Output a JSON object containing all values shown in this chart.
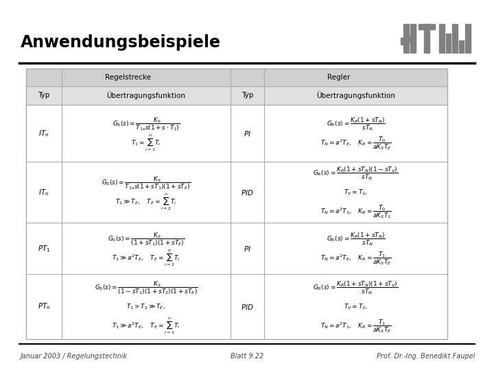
{
  "title": "Anwendungsbeispiele",
  "footer_left": "Januar 2003 / Regelungstechnik",
  "footer_center": "Blatt 9.22",
  "footer_right": "Prof. Dr.-Ing. Benedikt Faupel",
  "bg_color": "#ffffff",
  "logo_color": "#808080",
  "col_header_regelstrecke": "Regelstrecke",
  "col_header_regler": "Regler",
  "col_typ": "Typ",
  "col_uf": "Übertragungsfunktion",
  "table_outer_border": "#aaaaaa",
  "table_inner_border": "#aaaaaa",
  "header_bg1": "#d8d8d8",
  "header_bg2": "#e8e8e8",
  "row_bg": "#ffffff"
}
